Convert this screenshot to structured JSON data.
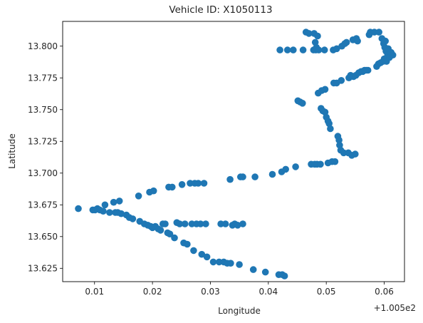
{
  "chart_data": {
    "type": "scatter",
    "title": "Vehicle ID: X1050113",
    "xlabel": "Longitude",
    "ylabel": "Latitude",
    "x_offset_label": "+1.005e2",
    "marker_color": "#1f77b4",
    "xlim": [
      0.0045,
      0.0635
    ],
    "ylim": [
      13.6145,
      13.8195
    ],
    "grid": false,
    "x_ticks": [
      0.01,
      0.02,
      0.03,
      0.04,
      0.05,
      0.06
    ],
    "x_tick_labels": [
      "0.01",
      "0.02",
      "0.03",
      "0.04",
      "0.05",
      "0.06"
    ],
    "y_ticks": [
      13.625,
      13.65,
      13.675,
      13.7,
      13.725,
      13.75,
      13.775,
      13.8
    ],
    "y_tick_labels": [
      "13.625",
      "13.650",
      "13.675",
      "13.700",
      "13.725",
      "13.750",
      "13.775",
      "13.800"
    ],
    "points": [
      [
        0.0072,
        13.672
      ],
      [
        0.0097,
        13.671
      ],
      [
        0.0101,
        13.671
      ],
      [
        0.0105,
        13.672
      ],
      [
        0.0109,
        13.671
      ],
      [
        0.0115,
        13.67
      ],
      [
        0.0118,
        13.675
      ],
      [
        0.0126,
        13.669
      ],
      [
        0.0133,
        13.677
      ],
      [
        0.0136,
        13.669
      ],
      [
        0.014,
        13.669
      ],
      [
        0.0143,
        13.678
      ],
      [
        0.0146,
        13.668
      ],
      [
        0.0155,
        13.667
      ],
      [
        0.016,
        13.665
      ],
      [
        0.0166,
        13.664
      ],
      [
        0.0176,
        13.682
      ],
      [
        0.0178,
        13.662
      ],
      [
        0.0186,
        13.66
      ],
      [
        0.0192,
        13.659
      ],
      [
        0.0195,
        13.685
      ],
      [
        0.0197,
        13.658
      ],
      [
        0.02,
        13.657
      ],
      [
        0.0202,
        13.686
      ],
      [
        0.0205,
        13.658
      ],
      [
        0.021,
        13.656
      ],
      [
        0.0214,
        13.655
      ],
      [
        0.0218,
        13.66
      ],
      [
        0.0222,
        13.66
      ],
      [
        0.0226,
        13.653
      ],
      [
        0.0228,
        13.689
      ],
      [
        0.023,
        13.652
      ],
      [
        0.0234,
        13.689
      ],
      [
        0.0238,
        13.649
      ],
      [
        0.0242,
        13.661
      ],
      [
        0.0247,
        13.66
      ],
      [
        0.0251,
        13.691
      ],
      [
        0.0254,
        13.645
      ],
      [
        0.0256,
        13.66
      ],
      [
        0.026,
        13.644
      ],
      [
        0.0265,
        13.692
      ],
      [
        0.0268,
        13.66
      ],
      [
        0.0271,
        13.639
      ],
      [
        0.0273,
        13.692
      ],
      [
        0.0276,
        13.66
      ],
      [
        0.0279,
        13.692
      ],
      [
        0.0283,
        13.66
      ],
      [
        0.0285,
        13.636
      ],
      [
        0.0289,
        13.692
      ],
      [
        0.0292,
        13.66
      ],
      [
        0.0294,
        13.634
      ],
      [
        0.0305,
        13.63
      ],
      [
        0.0315,
        13.63
      ],
      [
        0.0318,
        13.66
      ],
      [
        0.0323,
        13.63
      ],
      [
        0.0326,
        13.66
      ],
      [
        0.0329,
        13.629
      ],
      [
        0.0334,
        13.695
      ],
      [
        0.0335,
        13.629
      ],
      [
        0.0338,
        13.659
      ],
      [
        0.0342,
        13.66
      ],
      [
        0.0347,
        13.659
      ],
      [
        0.035,
        13.628
      ],
      [
        0.0352,
        13.697
      ],
      [
        0.0356,
        13.697
      ],
      [
        0.0356,
        13.66
      ],
      [
        0.0374,
        13.624
      ],
      [
        0.0377,
        13.697
      ],
      [
        0.0395,
        13.622
      ],
      [
        0.0407,
        13.699
      ],
      [
        0.0418,
        13.62
      ],
      [
        0.0423,
        13.701
      ],
      [
        0.0424,
        13.62
      ],
      [
        0.0428,
        13.619
      ],
      [
        0.043,
        13.703
      ],
      [
        0.042,
        13.797
      ],
      [
        0.0433,
        13.797
      ],
      [
        0.0443,
        13.797
      ],
      [
        0.0447,
        13.705
      ],
      [
        0.0451,
        13.757
      ],
      [
        0.0455,
        13.756
      ],
      [
        0.0459,
        13.755
      ],
      [
        0.046,
        13.797
      ],
      [
        0.0465,
        13.811
      ],
      [
        0.047,
        13.81
      ],
      [
        0.0474,
        13.707
      ],
      [
        0.0478,
        13.797
      ],
      [
        0.0479,
        13.81
      ],
      [
        0.048,
        13.707
      ],
      [
        0.0481,
        13.803
      ],
      [
        0.0482,
        13.797
      ],
      [
        0.0483,
        13.799
      ],
      [
        0.0484,
        13.707
      ],
      [
        0.0485,
        13.808
      ],
      [
        0.0486,
        13.763
      ],
      [
        0.0487,
        13.797
      ],
      [
        0.049,
        13.707
      ],
      [
        0.0491,
        13.751
      ],
      [
        0.0492,
        13.765
      ],
      [
        0.0494,
        13.749
      ],
      [
        0.0497,
        13.797
      ],
      [
        0.0498,
        13.766
      ],
      [
        0.0498,
        13.748
      ],
      [
        0.05,
        13.744
      ],
      [
        0.0503,
        13.741
      ],
      [
        0.0503,
        13.708
      ],
      [
        0.0505,
        13.739
      ],
      [
        0.0507,
        13.735
      ],
      [
        0.051,
        13.709
      ],
      [
        0.0512,
        13.797
      ],
      [
        0.0513,
        13.771
      ],
      [
        0.0515,
        13.709
      ],
      [
        0.0518,
        13.771
      ],
      [
        0.0518,
        13.798
      ],
      [
        0.052,
        13.729
      ],
      [
        0.0522,
        13.726
      ],
      [
        0.0523,
        13.722
      ],
      [
        0.0525,
        13.718
      ],
      [
        0.0526,
        13.773
      ],
      [
        0.0527,
        13.8
      ],
      [
        0.053,
        13.716
      ],
      [
        0.0532,
        13.802
      ],
      [
        0.0535,
        13.803
      ],
      [
        0.0538,
        13.716
      ],
      [
        0.0539,
        13.775
      ],
      [
        0.0542,
        13.777
      ],
      [
        0.0544,
        13.714
      ],
      [
        0.0546,
        13.805
      ],
      [
        0.0547,
        13.776
      ],
      [
        0.055,
        13.715
      ],
      [
        0.0551,
        13.777
      ],
      [
        0.0552,
        13.806
      ],
      [
        0.0554,
        13.804
      ],
      [
        0.0556,
        13.779
      ],
      [
        0.056,
        13.78
      ],
      [
        0.0563,
        13.78
      ],
      [
        0.0566,
        13.781
      ],
      [
        0.0569,
        13.781
      ],
      [
        0.0572,
        13.781
      ],
      [
        0.0574,
        13.809
      ],
      [
        0.0576,
        13.811
      ],
      [
        0.0583,
        13.811
      ],
      [
        0.0587,
        13.784
      ],
      [
        0.059,
        13.786
      ],
      [
        0.0591,
        13.811
      ],
      [
        0.0594,
        13.787
      ],
      [
        0.0596,
        13.806
      ],
      [
        0.0598,
        13.788
      ],
      [
        0.0599,
        13.802
      ],
      [
        0.06,
        13.79
      ],
      [
        0.0601,
        13.799
      ],
      [
        0.0602,
        13.804
      ],
      [
        0.0603,
        13.796
      ],
      [
        0.0604,
        13.788
      ],
      [
        0.0606,
        13.793
      ],
      [
        0.0607,
        13.798
      ],
      [
        0.0609,
        13.791
      ],
      [
        0.0612,
        13.795
      ],
      [
        0.0615,
        13.793
      ]
    ]
  }
}
